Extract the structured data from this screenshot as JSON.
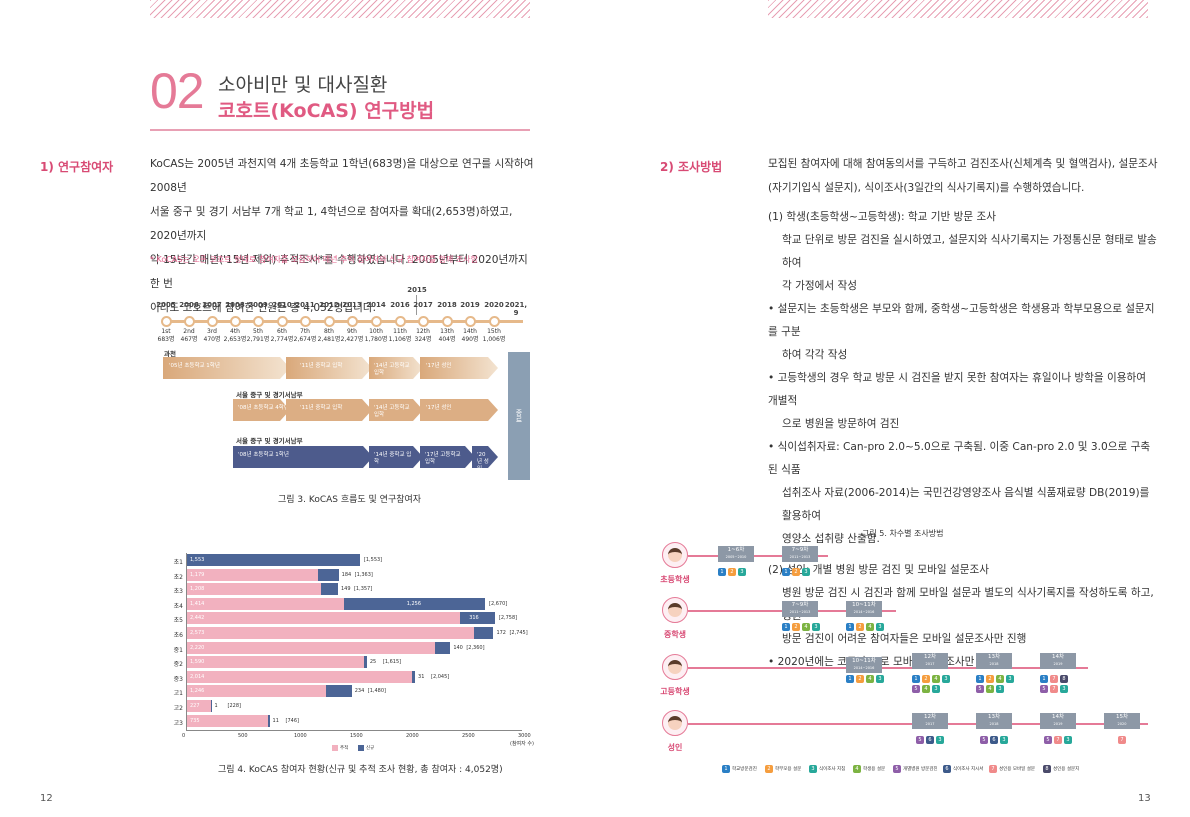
{
  "header": {
    "num": "02",
    "subtitle": "소아비만 및 대사질환",
    "title": "코호트(KoCAS) 연구방법"
  },
  "left": {
    "heading": "1) 연구참여자",
    "paragraph": [
      "KoCAS는 2005년 과천지역 4개 초등학교 1학년(683명)을 대상으로 연구를 시작하여 2008년",
      "서울 중구 및 경기 서남부 7개 학교 1, 4학년으로 참여자를 확대(2,653명)하였고, 2020년까지",
      "약 15년간 매년('15년 제외) 추적조사*를 수행하였습니다. 2005년부터 2020년까지 한 번",
      "이라도 코호트에 참여한 인원은 총 4,052명입니다."
    ],
    "note": "* KoCAS는 오픈 코호트 형태로 참여자를 모집하여 매년 추적 참여자와 신규 참여자를 함께 조사함",
    "fig3_caption": "그림 3. KoCAS 흐름도 및 연구참여자",
    "fig4_caption": "그림 4. KoCAS 참여자 현황(신규 및 추적 조사 현황, 총 참여자 : 4,052명)",
    "page": "12"
  },
  "timeline": {
    "top_year": "2015",
    "years": [
      "2005",
      "2006",
      "2007",
      "2008",
      "2009",
      "2010",
      "2011",
      "2012",
      "2013",
      "2014",
      "2016",
      "2017",
      "2018",
      "2019",
      "2020",
      "2021, 9"
    ],
    "waves": [
      "1st",
      "2nd",
      "3rd",
      "4th",
      "5th",
      "6th",
      "7th",
      "8th",
      "9th",
      "10th",
      "11th",
      "12th",
      "13th",
      "14th",
      "15th"
    ],
    "counts": [
      "683명",
      "467명",
      "470명",
      "2,653명",
      "2,791명",
      "2,774명",
      "2,674명",
      "2,481명",
      "2,427명",
      "1,780명",
      "1,106명",
      "324명",
      "404명",
      "490명",
      "1,006명"
    ],
    "groups": [
      "과천",
      "서울 중구 및 경기서남부",
      "서울 중구 및 경기서남부"
    ],
    "row1": [
      "'05년 초등학교 1학년",
      "'11년 중학교 입학",
      "'14년 고등학교 입학",
      "'17년 성인"
    ],
    "row2": [
      "'08년 초등학교 4학년",
      "'11년 중학교 입학",
      "'14년 고등학교 입학",
      "'17년 성인"
    ],
    "row3": [
      "'08년 초등학교 1학년",
      "'14년 중학교 입학",
      "'17년 고등학교 입학",
      "'20년 성인"
    ],
    "end": "종료"
  },
  "chart_data": {
    "type": "bar",
    "orientation": "horizontal",
    "stacked": true,
    "categories": [
      "초1",
      "초2",
      "초3",
      "초4",
      "초5",
      "초6",
      "중1",
      "중2",
      "중3",
      "고1",
      "고2",
      "고3"
    ],
    "series": [
      {
        "name": "추적",
        "color": "#f2b1bf",
        "values": [
          0,
          1179,
          1208,
          1414,
          2442,
          2573,
          2220,
          1590,
          2014,
          1246,
          227,
          735
        ]
      },
      {
        "name": "신규",
        "color": "#4c6596",
        "values": [
          1553,
          184,
          149,
          1256,
          316,
          172,
          140,
          25,
          31,
          234,
          1,
          11
        ]
      }
    ],
    "pink_labels": [
      "",
      "1,179",
      "1,208",
      "1,414",
      "2,442",
      "2,573",
      "2,220",
      "1,590",
      "2,014",
      "1,246",
      "227",
      "735"
    ],
    "blue_labels": [
      "1,553",
      "184",
      "149",
      "1,256",
      "316",
      "172",
      "140",
      "25",
      "31",
      "234",
      "1",
      "11"
    ],
    "totals": [
      "[1,553]",
      "[1,363]",
      "[1,357]",
      "[2,670]",
      "[2,758]",
      "[2,745]",
      "[2,360]",
      "[1,615]",
      "[2,045]",
      "[1,480]",
      "[228]",
      "[746]"
    ],
    "xticks": [
      "0",
      "500",
      "1000",
      "1500",
      "2000",
      "2500",
      "3000"
    ],
    "xunit": "(참여자 수)",
    "xlim": [
      0,
      3000
    ]
  },
  "right": {
    "heading": "2) 조사방법",
    "intro": [
      "모집된 참여자에 대해 참여동의서를 구득하고 검진조사(신체계측 및 혈액검사), 설문조사",
      "(자기기입식 설문지), 식이조사(3일간의 식사기록지)를 수행하였습니다."
    ],
    "lines": [
      "(1) 학생(초등학생~고등학생): 학교 기반 방문 조사",
      "학교 단위로 방문 검진을 실시하였고, 설문지와 식사기록지는 가정통신문 형태로 발송하여",
      "각 가정에서 작성",
      "• 설문지는 초등학생은 부모와 함께, 중학생~고등학생은 학생용과 학부모용으로 설문지를 구분",
      "하여 각각 작성",
      "• 고등학생의 경우 학교 방문 시 검진을 받지 못한 참여자는 휴일이나 방학을 이용하여 개별적",
      "으로 병원을 방문하여 검진",
      "• 식이섭취자료: Can-pro 2.0~5.0으로 구축됨. 이중 Can-pro 2.0 및 3.0으로 구축된 식품",
      "섭취조사 자료(2006-2014)는 국민건강영양조사 음식별 식품재료량 DB(2019)를 활용하여",
      "영양소 섭취량 산출함.",
      "(2) 성인: 개별 병원 방문 검진 및 모바일 설문조사",
      "병원 방문 검진 시 검진과 함께 모바일 설문과 별도의 식사기록지를 작성하도록 하고, 병원",
      "방문 검진이 어려운 참여자들은 모바일 설문조사만 진행",
      "• 2020년에는 코로나19로 모바일 설문조사만 진행"
    ],
    "fig5_caption": "그림 5. 차수별 조사방법",
    "page": "13"
  },
  "fig5": {
    "people": [
      "초등학생",
      "중학생",
      "고등학생",
      "성인"
    ],
    "boxes": [
      {
        "t": "1~6차",
        "s": "2005~2010"
      },
      {
        "t": "7~9차",
        "s": "2011~2013"
      },
      {
        "t": "7~9차",
        "s": "2011~2013"
      },
      {
        "t": "10~11차",
        "s": "2014~2016"
      },
      {
        "t": "10~11차",
        "s": "2014~2016"
      },
      {
        "t": "12차",
        "s": "2017"
      },
      {
        "t": "13차",
        "s": "2018"
      },
      {
        "t": "14차",
        "s": "2019"
      },
      {
        "t": "12차",
        "s": "2017"
      },
      {
        "t": "13차",
        "s": "2018"
      },
      {
        "t": "14차",
        "s": "2019"
      },
      {
        "t": "15차",
        "s": "2020"
      }
    ],
    "legend": [
      "학교방문검진",
      "학부모용 설문",
      "식이조사 지침",
      "학생용 설문",
      "개별병원 방문검진",
      "식이조사 지시서",
      "성인용 모바일 설문",
      "성인용 설문지"
    ]
  }
}
